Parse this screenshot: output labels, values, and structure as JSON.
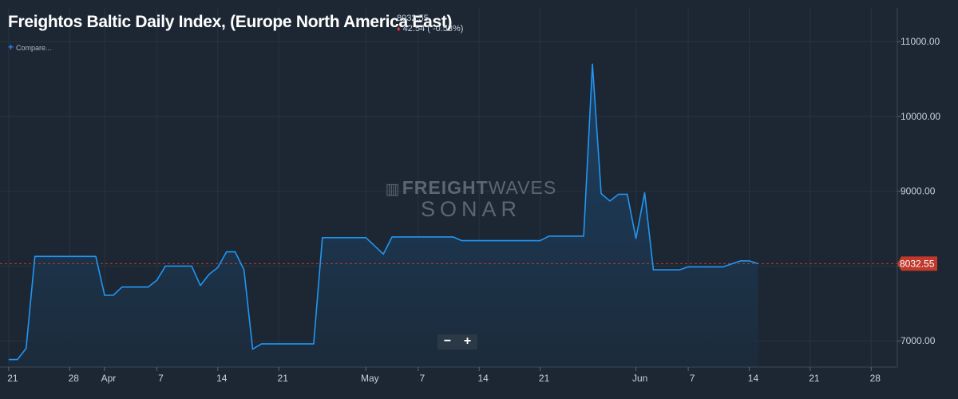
{
  "header": {
    "title": "Freightos Baltic Daily Index, (Europe North America East)",
    "last_value": "8032.55",
    "change_arrow": "♦",
    "change_text": "42.54 ( -0.53%)",
    "compare_label": "Compare..."
  },
  "watermark": {
    "line1_bold": "FREIGHT",
    "line1_thin": "WAVES",
    "line2": "SONAR"
  },
  "zoom": {
    "minus": "−",
    "plus": "+"
  },
  "colors": {
    "background": "#1c2733",
    "line": "#2196f3",
    "fill_top": "#1d4266",
    "fill_bottom": "#1c2b3b",
    "last_price_badge": "#c0392b",
    "grid": "#263442"
  },
  "chart_data": {
    "type": "area",
    "title": "Freightos Baltic Daily Index, (Europe North America East)",
    "xlabel": "",
    "ylabel": "",
    "ylim": [
      6650,
      11450
    ],
    "y_ticks": [
      7000,
      8000,
      9000,
      10000,
      11000
    ],
    "y_tick_labels": [
      "7000.00",
      "8000.00",
      "9000.00",
      "10000.00",
      "11000.00"
    ],
    "last_price": 8032.55,
    "last_price_label": "8032.55",
    "grid": true,
    "y_axis_position": "right",
    "x_domain": [
      "2021-03-20",
      "2021-07-01"
    ],
    "x_ticks": [
      {
        "date": "2021-03-21",
        "label": "21"
      },
      {
        "date": "2021-03-28",
        "label": "28"
      },
      {
        "date": "2021-04-01",
        "label": "Apr"
      },
      {
        "date": "2021-04-07",
        "label": "7"
      },
      {
        "date": "2021-04-14",
        "label": "14"
      },
      {
        "date": "2021-04-21",
        "label": "21"
      },
      {
        "date": "2021-05-01",
        "label": "May"
      },
      {
        "date": "2021-05-07",
        "label": "7"
      },
      {
        "date": "2021-05-14",
        "label": "14"
      },
      {
        "date": "2021-05-21",
        "label": "21"
      },
      {
        "date": "2021-06-01",
        "label": "Jun"
      },
      {
        "date": "2021-06-07",
        "label": "7"
      },
      {
        "date": "2021-06-14",
        "label": "14"
      },
      {
        "date": "2021-06-21",
        "label": "21"
      },
      {
        "date": "2021-06-28",
        "label": "28"
      }
    ],
    "series": [
      {
        "points": [
          [
            "2021-03-21",
            6750
          ],
          [
            "2021-03-22",
            6750
          ],
          [
            "2021-03-23",
            6900
          ],
          [
            "2021-03-24",
            8130
          ],
          [
            "2021-03-30",
            8130
          ],
          [
            "2021-03-31",
            8130
          ],
          [
            "2021-04-01",
            7610
          ],
          [
            "2021-04-02",
            7610
          ],
          [
            "2021-04-03",
            7720
          ],
          [
            "2021-04-06",
            7720
          ],
          [
            "2021-04-07",
            7810
          ],
          [
            "2021-04-08",
            8000
          ],
          [
            "2021-04-11",
            8000
          ],
          [
            "2021-04-12",
            7740
          ],
          [
            "2021-04-13",
            7890
          ],
          [
            "2021-04-14",
            7980
          ],
          [
            "2021-04-15",
            8190
          ],
          [
            "2021-04-16",
            8190
          ],
          [
            "2021-04-17",
            7950
          ],
          [
            "2021-04-18",
            6890
          ],
          [
            "2021-04-19",
            6960
          ],
          [
            "2021-04-25",
            6960
          ],
          [
            "2021-04-26",
            8380
          ],
          [
            "2021-05-01",
            8380
          ],
          [
            "2021-05-03",
            8160
          ],
          [
            "2021-05-04",
            8390
          ],
          [
            "2021-05-11",
            8390
          ],
          [
            "2021-05-12",
            8340
          ],
          [
            "2021-05-21",
            8340
          ],
          [
            "2021-05-22",
            8400
          ],
          [
            "2021-05-26",
            8400
          ],
          [
            "2021-05-27",
            10700
          ],
          [
            "2021-05-28",
            8970
          ],
          [
            "2021-05-29",
            8870
          ],
          [
            "2021-05-30",
            8960
          ],
          [
            "2021-05-31",
            8960
          ],
          [
            "2021-06-01",
            8370
          ],
          [
            "2021-06-02",
            8980
          ],
          [
            "2021-06-03",
            7950
          ],
          [
            "2021-06-06",
            7950
          ],
          [
            "2021-06-07",
            7990
          ],
          [
            "2021-06-11",
            7990
          ],
          [
            "2021-06-12",
            8030
          ],
          [
            "2021-06-13",
            8070
          ],
          [
            "2021-06-14",
            8070
          ],
          [
            "2021-06-15",
            8032.55
          ]
        ]
      }
    ]
  }
}
